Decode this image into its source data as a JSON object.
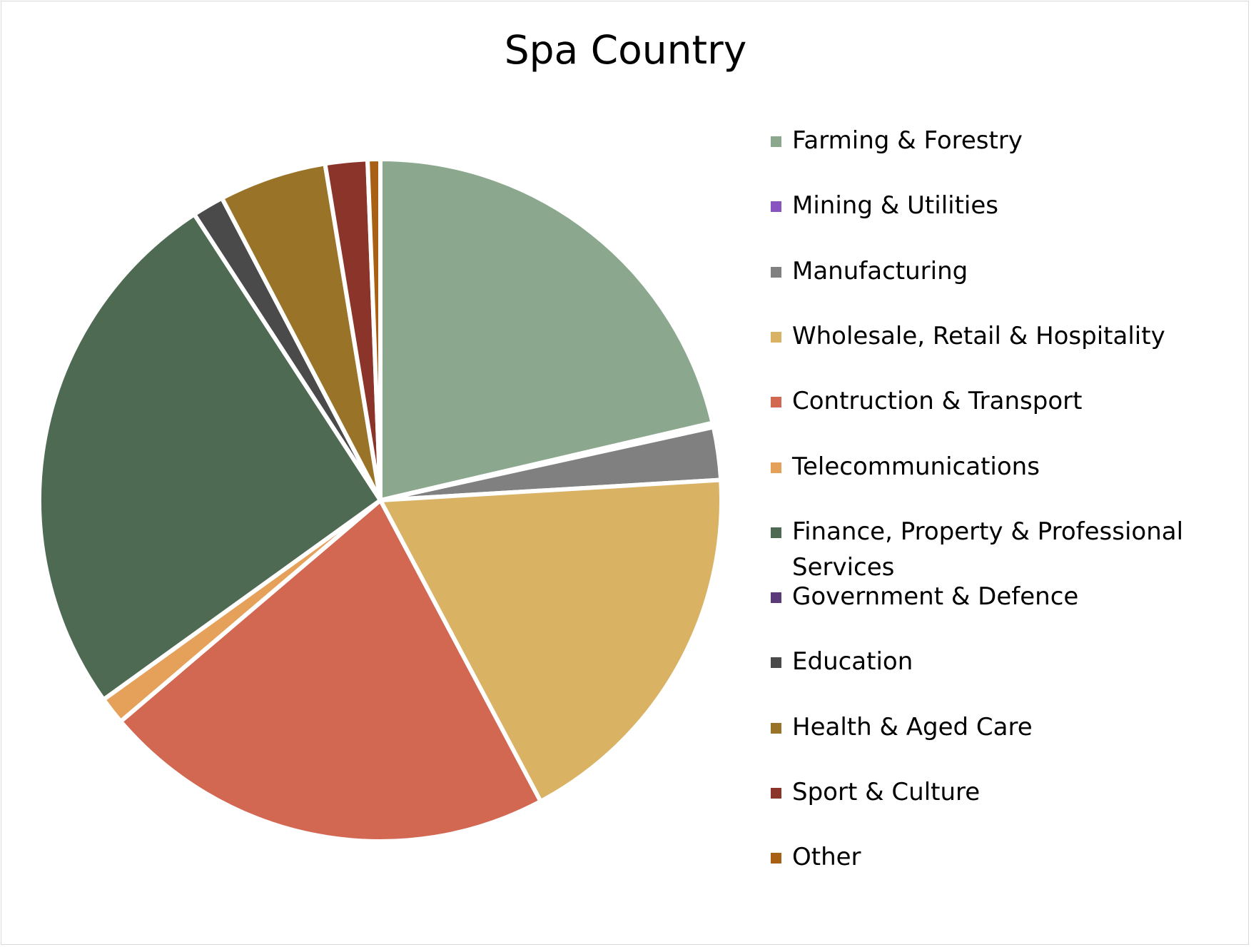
{
  "chart_data": {
    "type": "pie",
    "title": "Spa Country",
    "legend_position": "right",
    "categories": [
      "Farming & Forestry",
      "Mining & Utilities",
      "Manufacturing",
      "Wholesale, Retail & Hospitality",
      "Contruction & Transport",
      "Telecommunications",
      "Finance, Property & Professional Services",
      "Government & Defence",
      "Education",
      "Health & Aged Care",
      "Sport & Culture",
      "Other"
    ],
    "values": [
      21.4,
      0.2,
      2.5,
      18.2,
      21.6,
      1.3,
      25.8,
      0.0,
      1.5,
      5.1,
      2.0,
      0.6
    ],
    "colors": [
      "#8BA88E",
      "#8855C0",
      "#808080",
      "#D9B263",
      "#D26752",
      "#E5A05A",
      "#4F6A53",
      "#5B3A7A",
      "#4A4A4A",
      "#997327",
      "#8B342A",
      "#A86014"
    ]
  }
}
